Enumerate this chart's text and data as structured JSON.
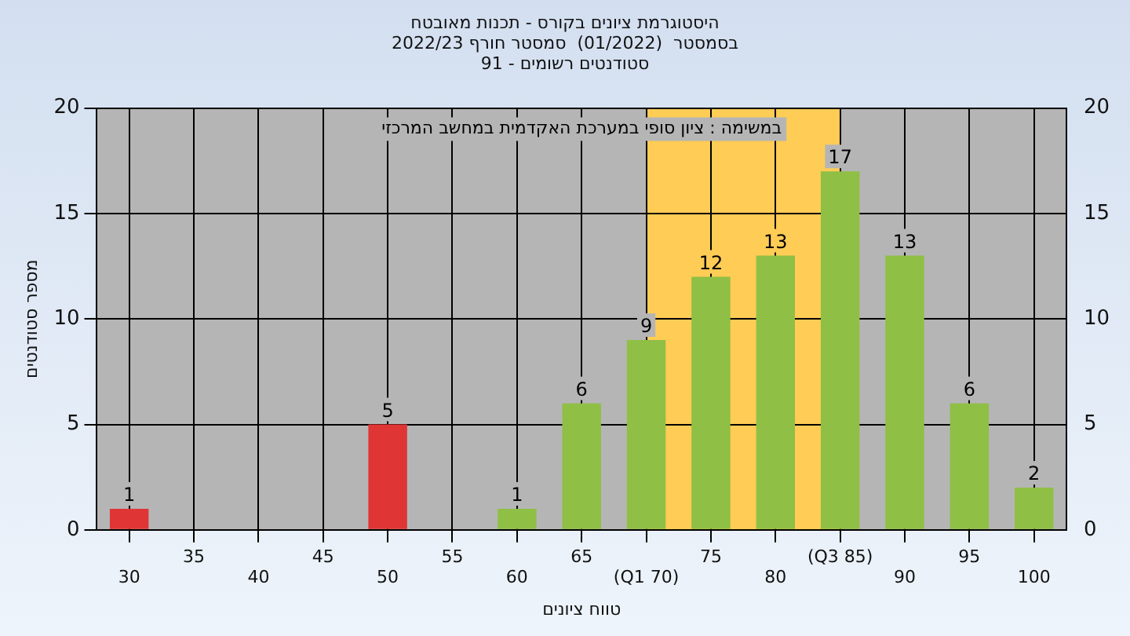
{
  "chart_data": {
    "type": "bar",
    "title": "היסטוגרמת ציונים בקורס - תכנות מאובטח",
    "subtitle": "בסמסטר  (01/2022)  סמסטר חורף 2022/23\nסטודנטים רשומים - 91",
    "xlabel": "טווח ציונים",
    "ylabel": "מספר סטודנטים",
    "categories": [
      "30",
      "35",
      "40",
      "45",
      "50",
      "55",
      "60",
      "65",
      "(Q1 70)",
      "75",
      "80",
      "(Q3 85)",
      "90",
      "95",
      "100"
    ],
    "values": [
      1,
      0,
      0,
      0,
      5,
      0,
      1,
      6,
      9,
      12,
      13,
      17,
      13,
      6,
      2
    ],
    "value_labels": [
      "1",
      null,
      null,
      null,
      "5",
      null,
      "1",
      "6",
      "9",
      "12",
      "13",
      "17",
      "13",
      "6",
      "2"
    ],
    "colors": [
      "#e03535",
      "#8fbf45",
      "#8fbf45",
      "#8fbf45",
      "#e03535",
      "#8fbf45",
      "#8fbf45",
      "#8fbf45",
      "#8fbf45",
      "#8fbf45",
      "#8fbf45",
      "#8fbf45",
      "#8fbf45",
      "#8fbf45",
      "#8fbf45"
    ],
    "ylim": [
      0,
      20
    ],
    "yticks": [
      0,
      5,
      10,
      15,
      20
    ],
    "y2lim": [
      0,
      20
    ],
    "y2ticks": [
      0,
      5,
      10,
      15,
      20
    ],
    "bands": [
      {
        "axis": "x",
        "from": "(Q1 70)",
        "to": "(Q3 85)",
        "color": "#ffcc55"
      }
    ],
    "annotations": [
      "במשימה : ציון סופי במערכת האקדמית במחשב המרכזי"
    ],
    "grid": true,
    "legend": false
  }
}
